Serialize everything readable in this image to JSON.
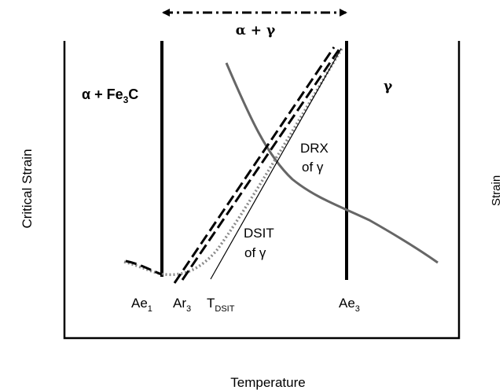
{
  "colors": {
    "phase_boundary": "#000000",
    "curve_gray": "#666666",
    "dotted_gray": "#8a8a8a",
    "background": "#ffffff"
  },
  "labels": {
    "alpha_gamma_range": "α + γ",
    "alpha_fe3c": {
      "main": "α + Fe",
      "sub": "3",
      "tail": "C"
    },
    "gamma_region": "γ",
    "drx_line1": "DRX",
    "drx_line2": "of γ",
    "dsit_line1": "DSIT",
    "dsit_line2": "of γ",
    "ae1": {
      "main": "Ae",
      "sub": "1"
    },
    "ar3": {
      "main": "Ar",
      "sub": "3"
    },
    "tdsit": {
      "main": "T",
      "sub": "DSIT"
    },
    "ae3": {
      "main": "Ae",
      "sub": "3"
    },
    "y_axis": "Critical Strain",
    "x_axis": "Temperature",
    "right_axis_partial": "Strain"
  },
  "icons": {
    "range_arrow": "double-headed-dash-dot-arrow"
  }
}
